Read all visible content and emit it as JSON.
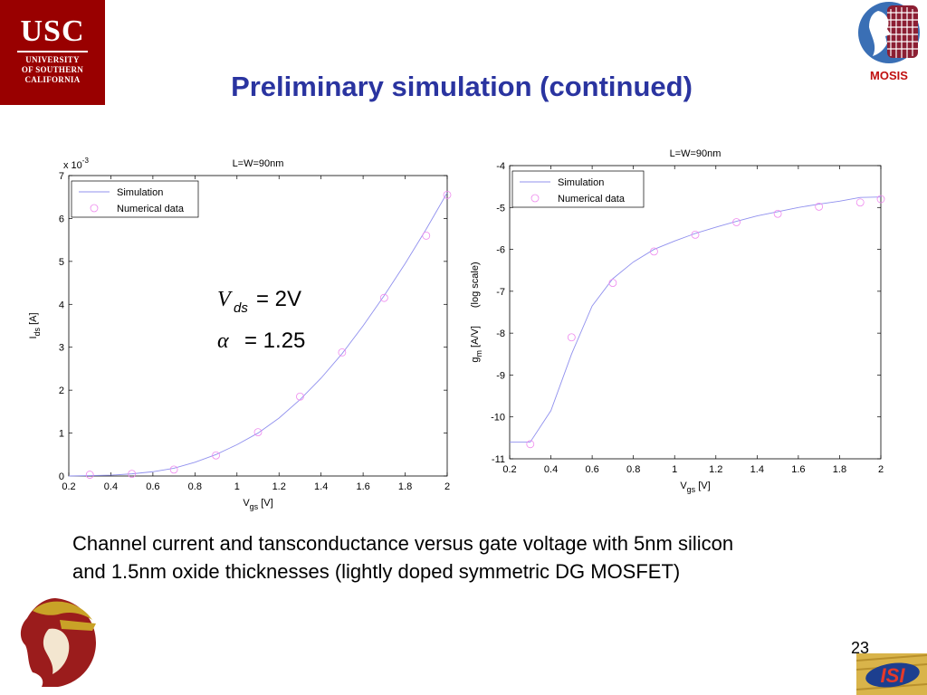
{
  "slide": {
    "title": "Preliminary simulation (continued)",
    "caption_line1": "Channel current and tansconductance versus gate voltage with 5nm silicon",
    "caption_line2": "and 1.5nm oxide thicknesses (lightly doped symmetric DG MOSFET)",
    "page_number": "23"
  },
  "logos": {
    "usc_big": "USC",
    "usc_line1": "UNIVERSITY",
    "usc_line2": "OF SOUTHERN",
    "usc_line3": "CALIFORNIA",
    "mosis": "MOSIS",
    "isi": "ISI"
  },
  "colors": {
    "title": "#2a34a0",
    "usc_red": "#990000",
    "simulation": "#9090ee",
    "numerical": "#ee88ee"
  },
  "chart_data": [
    {
      "type": "line",
      "title": "L=W=90nm",
      "xlabel": "V",
      "xlabel_sub": "gs",
      "xlabel_unit": " [V]",
      "ylabel": "I",
      "ylabel_sub": "ds",
      "ylabel_unit": " [A]",
      "y_multiplier": "x 10",
      "y_multiplier_exp": "-3",
      "xlim": [
        0.2,
        2
      ],
      "ylim": [
        0,
        7
      ],
      "xticks": [
        "0.2",
        "0.4",
        "0.6",
        "0.8",
        "1",
        "1.2",
        "1.4",
        "1.6",
        "1.8",
        "2"
      ],
      "yticks": [
        "0",
        "1",
        "2",
        "3",
        "4",
        "5",
        "6",
        "7"
      ],
      "legend_position": "top-left",
      "annotation_lines": [
        {
          "lhs": "V",
          "sub": "ds",
          "rhs": "= 2V"
        },
        {
          "lhs": "α",
          "sub": "",
          "rhs": "= 1.25"
        }
      ],
      "series": [
        {
          "name": "Simulation",
          "style": "line",
          "x": [
            0.2,
            0.3,
            0.4,
            0.5,
            0.6,
            0.7,
            0.8,
            0.9,
            1.0,
            1.1,
            1.2,
            1.3,
            1.4,
            1.5,
            1.6,
            1.7,
            1.8,
            1.9,
            2.0
          ],
          "y": [
            0.0,
            0.01,
            0.02,
            0.05,
            0.1,
            0.18,
            0.32,
            0.5,
            0.73,
            1.0,
            1.35,
            1.78,
            2.28,
            2.85,
            3.5,
            4.2,
            4.95,
            5.75,
            6.6
          ]
        },
        {
          "name": "Numerical data",
          "style": "circle",
          "x": [
            0.3,
            0.5,
            0.7,
            0.9,
            1.1,
            1.3,
            1.5,
            1.7,
            1.9,
            2.0
          ],
          "y": [
            0.03,
            0.05,
            0.15,
            0.48,
            1.02,
            1.85,
            2.88,
            4.15,
            5.6,
            6.55
          ]
        }
      ]
    },
    {
      "type": "line",
      "title": "L=W=90nm",
      "xlabel": "V",
      "xlabel_sub": "gs",
      "xlabel_unit": " [V]",
      "ylabel": "g",
      "ylabel_sub": "m",
      "ylabel_unit": " [A/V]",
      "ylabel_scale": "(log scale)",
      "xlim": [
        0.2,
        2
      ],
      "ylim": [
        -11,
        -4
      ],
      "xticks": [
        "0.2",
        "0.4",
        "0.6",
        "0.8",
        "1",
        "1.2",
        "1.4",
        "1.6",
        "1.8",
        "2"
      ],
      "yticks": [
        "-11",
        "-10",
        "-9",
        "-8",
        "-7",
        "-6",
        "-5",
        "-4"
      ],
      "legend_position": "top-left",
      "series": [
        {
          "name": "Simulation",
          "style": "line",
          "x": [
            0.2,
            0.3,
            0.4,
            0.5,
            0.6,
            0.7,
            0.8,
            0.9,
            1.0,
            1.1,
            1.2,
            1.3,
            1.4,
            1.5,
            1.6,
            1.7,
            1.8,
            1.9,
            2.0
          ],
          "y": [
            -10.6,
            -10.6,
            -9.85,
            -8.5,
            -7.35,
            -6.7,
            -6.3,
            -6.0,
            -5.8,
            -5.62,
            -5.47,
            -5.33,
            -5.2,
            -5.1,
            -5.0,
            -4.92,
            -4.85,
            -4.76,
            -4.75
          ]
        },
        {
          "name": "Numerical data",
          "style": "circle",
          "x": [
            0.3,
            0.5,
            0.7,
            0.9,
            1.1,
            1.3,
            1.5,
            1.7,
            1.9,
            2.0
          ],
          "y": [
            -10.65,
            -8.1,
            -6.8,
            -6.05,
            -5.65,
            -5.35,
            -5.15,
            -4.98,
            -4.88,
            -4.8
          ]
        }
      ]
    }
  ]
}
